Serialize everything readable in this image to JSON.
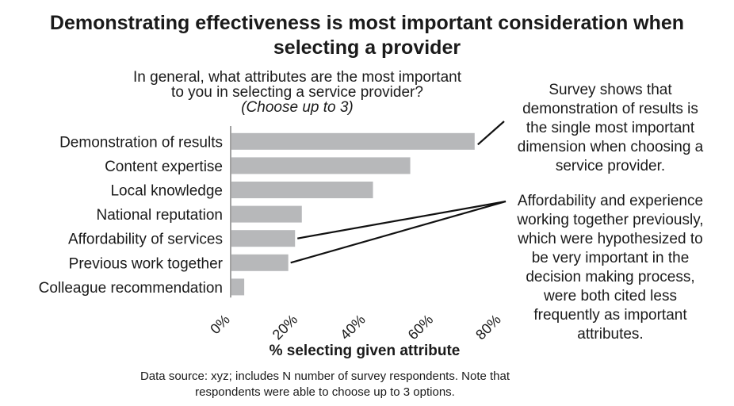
{
  "title": {
    "line1": "Demonstrating effectiveness is most important consideration when",
    "line2": "selecting a provider"
  },
  "question": {
    "line1": "In general, what attributes are the most important",
    "line2": "to you in selecting a service provider?",
    "hint": "(Choose up to 3)"
  },
  "chart_data": {
    "type": "bar",
    "orientation": "horizontal",
    "categories": [
      "Demonstration of results",
      "Content expertise",
      "Local knowledge",
      "National reputation",
      "Affordability of services",
      "Previous work together",
      "Colleague recommendation"
    ],
    "values": [
      72,
      53,
      42,
      21,
      19,
      17,
      4
    ],
    "xlabel": "% selecting given attribute",
    "xlim": [
      0,
      80
    ],
    "xticks": [
      0,
      20,
      40,
      60,
      80
    ],
    "xtick_labels": [
      "0%",
      "20%",
      "40%",
      "60%",
      "80%"
    ],
    "bar_color": "#b7b8ba",
    "grid": false
  },
  "callouts": [
    {
      "lines": [
        "Survey shows that",
        "demonstration of results is",
        "the single most important",
        "dimension when choosing a",
        "service provider."
      ],
      "points_to": [
        "Demonstration of results"
      ]
    },
    {
      "lines": [
        "Affordability and experience",
        "working together previously,",
        "which were hypothesized to",
        "be very important in the",
        "decision making process,",
        "were both cited less",
        "frequently as important",
        "attributes."
      ],
      "points_to": [
        "Affordability of services",
        "Previous work together"
      ]
    }
  ],
  "footnote": {
    "line1": "Data source: xyz; includes N number of survey respondents. Note that",
    "line2": "respondents were able to choose up to 3 options."
  }
}
